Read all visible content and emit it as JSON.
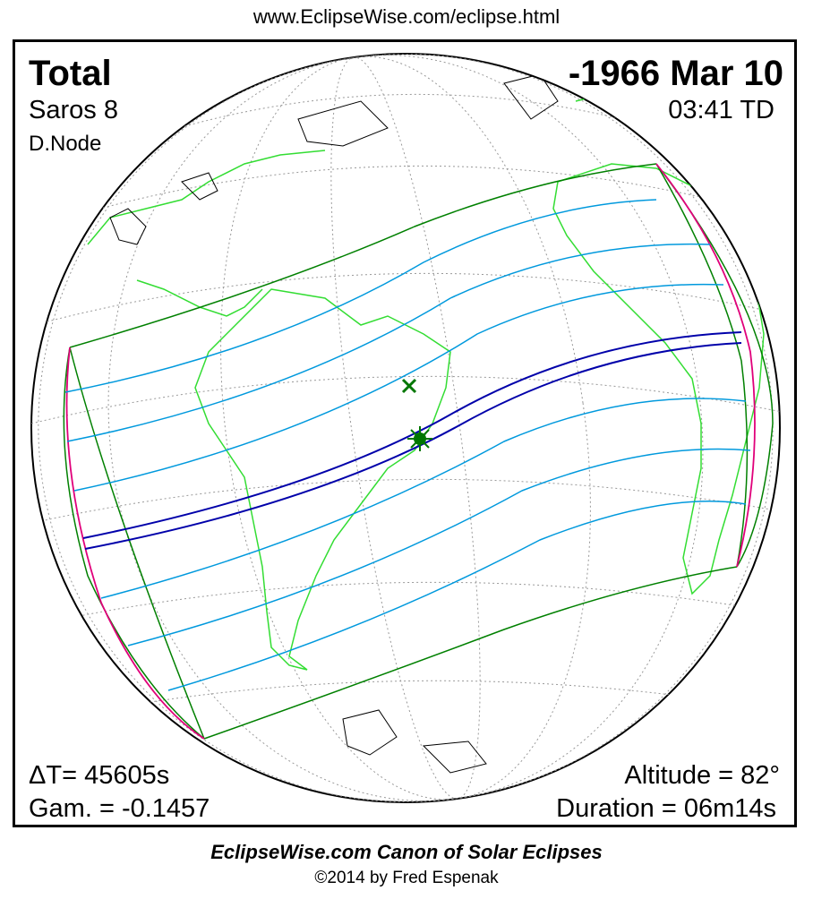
{
  "header": {
    "url": "www.EclipseWise.com/eclipse.html"
  },
  "eclipse": {
    "type": "Total",
    "date": "-1966 Mar 10",
    "saros": "Saros   8",
    "time": "03:41 TD",
    "node": "D.Node",
    "delta_t": "ΔT=  45605s",
    "gamma": "Gam. = -0.1457",
    "altitude": "Altitude = 82°",
    "duration": "Duration = 06m14s"
  },
  "colors": {
    "path_of_totality": "#0000aa",
    "penumbra_limits": "#008000",
    "partial_lines": "#0099dd",
    "rise_set_curves": "#e0007a",
    "coastlines": "#33dd33",
    "greatest_eclipse_marker": "#007700"
  },
  "icons": {
    "greatest_eclipse": "sun-star-marker-icon",
    "greatest_duration": "x-marker-icon"
  },
  "footer": {
    "title": "EclipseWise.com Canon of Solar Eclipses",
    "copyright": "©2014 by Fred Espenak"
  }
}
